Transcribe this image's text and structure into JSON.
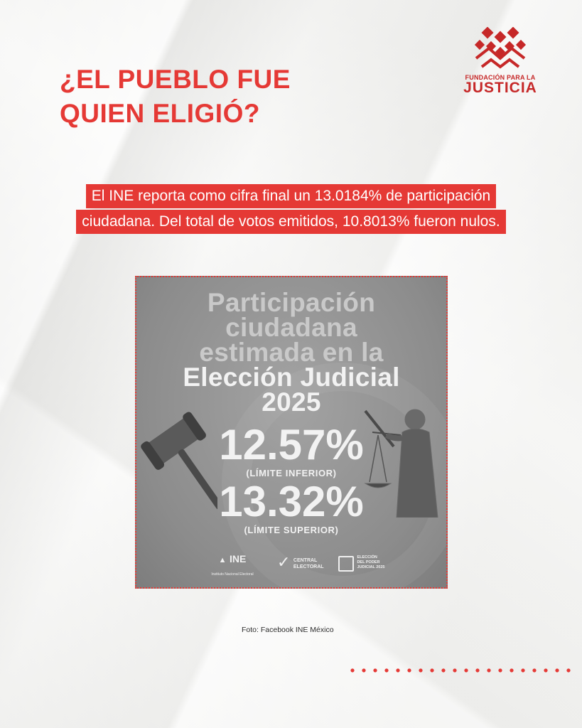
{
  "header": {
    "headline_line1": "¿EL PUEBLO FUE",
    "headline_line2": "QUIEN ELIGIÓ?"
  },
  "logo": {
    "icon": "fundacion-logo-icon",
    "line1": "FUNDACIÓN PARA LA",
    "line2": "JUSTICIA"
  },
  "lede": {
    "line1": "El INE reporta como cifra final un 13.0184% de participación",
    "line2": "ciudadana. Del total de votos emitidos, 10.8013% fueron nulos."
  },
  "infographic": {
    "title_line1": "Participación",
    "title_line2": "ciudadana",
    "title_line3": "estimada en la",
    "title_line4": "Elección Judicial",
    "title_line5": "2025",
    "stat_lower_value": "12.57%",
    "stat_lower_label": "(LÍMITE INFERIOR)",
    "stat_upper_value": "13.32%",
    "stat_upper_label": "(LÍMITE SUPERIOR)",
    "logo_ine": "INE",
    "logo_ine_sub": "Instituto Nacional Electoral",
    "logo_central_1": "CENTRAL",
    "logo_central_2": "ELECTORAL",
    "logo_eleccion_1": "ELECCIÓN",
    "logo_eleccion_2": "DEL PODER",
    "logo_eleccion_3": "JUDICIAL 2025"
  },
  "credit": "Foto: Facebook INE México",
  "colors": {
    "accent": "#e53935",
    "logo": "#c62828"
  }
}
